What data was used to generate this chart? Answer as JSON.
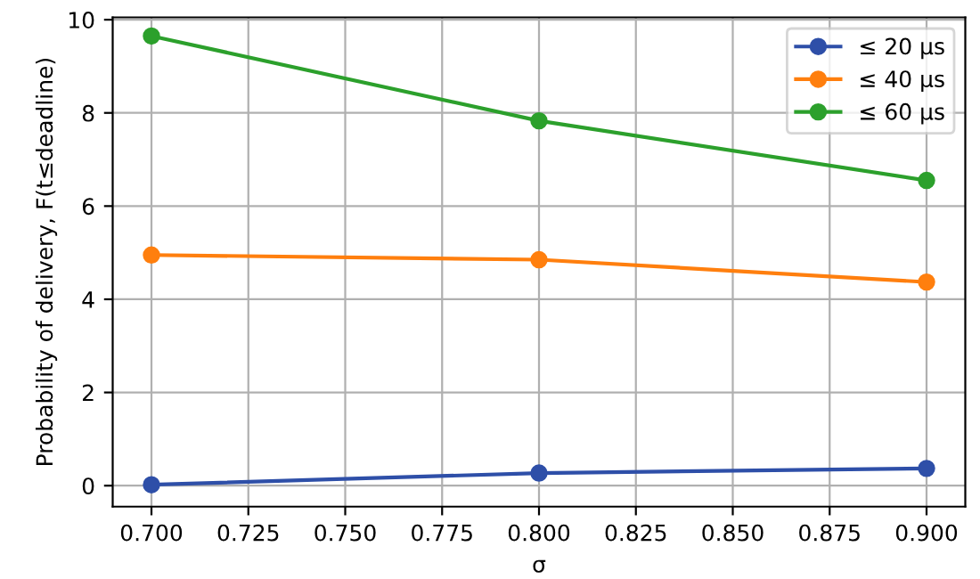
{
  "chart_data": {
    "type": "line",
    "xlabel": "σ",
    "ylabel": "Probability of delivery, F(t≤deadline)",
    "x": [
      0.7,
      0.8,
      0.9
    ],
    "series": [
      {
        "name": "≤ 20 µs",
        "color": "#2e4fa8",
        "values": [
          0.02,
          0.27,
          0.37
        ]
      },
      {
        "name": "≤ 40 µs",
        "color": "#ff7f0e",
        "values": [
          4.95,
          4.85,
          4.37
        ]
      },
      {
        "name": "≤ 60 µs",
        "color": "#2ca02c",
        "values": [
          9.65,
          7.83,
          6.55
        ]
      }
    ],
    "xlim": [
      0.69,
      0.91
    ],
    "xticks": [
      {
        "value": 0.7,
        "label": "0.700"
      },
      {
        "value": 0.725,
        "label": "0.725"
      },
      {
        "value": 0.75,
        "label": "0.750"
      },
      {
        "value": 0.775,
        "label": "0.775"
      },
      {
        "value": 0.8,
        "label": "0.800"
      },
      {
        "value": 0.825,
        "label": "0.825"
      },
      {
        "value": 0.85,
        "label": "0.850"
      },
      {
        "value": 0.875,
        "label": "0.875"
      },
      {
        "value": 0.9,
        "label": "0.900"
      }
    ],
    "ylim": [
      -0.45,
      10.05
    ],
    "yticks": [
      0,
      2,
      4,
      6,
      8,
      10
    ],
    "grid": true,
    "legend": "top right",
    "marker": "circle",
    "line_style": "solid"
  }
}
